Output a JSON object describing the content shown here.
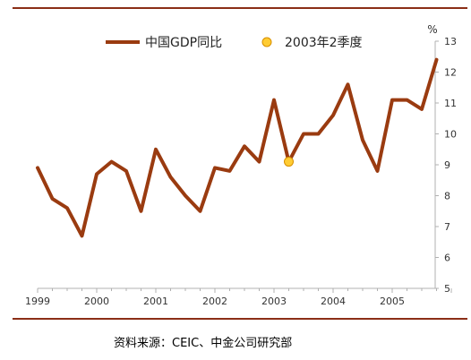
{
  "chart_data": {
    "type": "line",
    "series": [
      {
        "name": "中国GDP同比",
        "color": "#9a3b10",
        "x": [
          "1999Q1",
          "1999Q2",
          "1999Q3",
          "1999Q4",
          "2000Q1",
          "2000Q2",
          "2000Q3",
          "2000Q4",
          "2001Q1",
          "2001Q2",
          "2001Q3",
          "2001Q4",
          "2002Q1",
          "2002Q2",
          "2002Q3",
          "2002Q4",
          "2003Q1",
          "2003Q2",
          "2003Q3",
          "2003Q4",
          "2004Q1",
          "2004Q2",
          "2004Q3",
          "2004Q4",
          "2005Q1",
          "2005Q2",
          "2005Q3",
          "2005Q4"
        ],
        "values": [
          8.9,
          7.9,
          7.6,
          6.7,
          8.7,
          9.1,
          8.8,
          7.5,
          9.5,
          8.6,
          8.0,
          7.5,
          8.9,
          8.8,
          9.6,
          9.1,
          11.1,
          9.1,
          10.0,
          10.0,
          10.6,
          11.6,
          9.8,
          8.8,
          11.1,
          11.1,
          10.8,
          12.4
        ]
      }
    ],
    "highlight": {
      "name": "2003年2季度",
      "x": "2003Q2",
      "value": 9.1,
      "color": "#ffcc33"
    },
    "x_ticks": [
      "1999",
      "2000",
      "2001",
      "2002",
      "2003",
      "2004",
      "2005"
    ],
    "y_ticks": [
      5,
      6,
      7,
      8,
      9,
      10,
      11,
      12,
      13
    ],
    "ylim": [
      5,
      13
    ],
    "y_unit": "%",
    "grid": false,
    "legend_position": "top"
  },
  "source": "资料来源：CEIC、中金公司研究部"
}
